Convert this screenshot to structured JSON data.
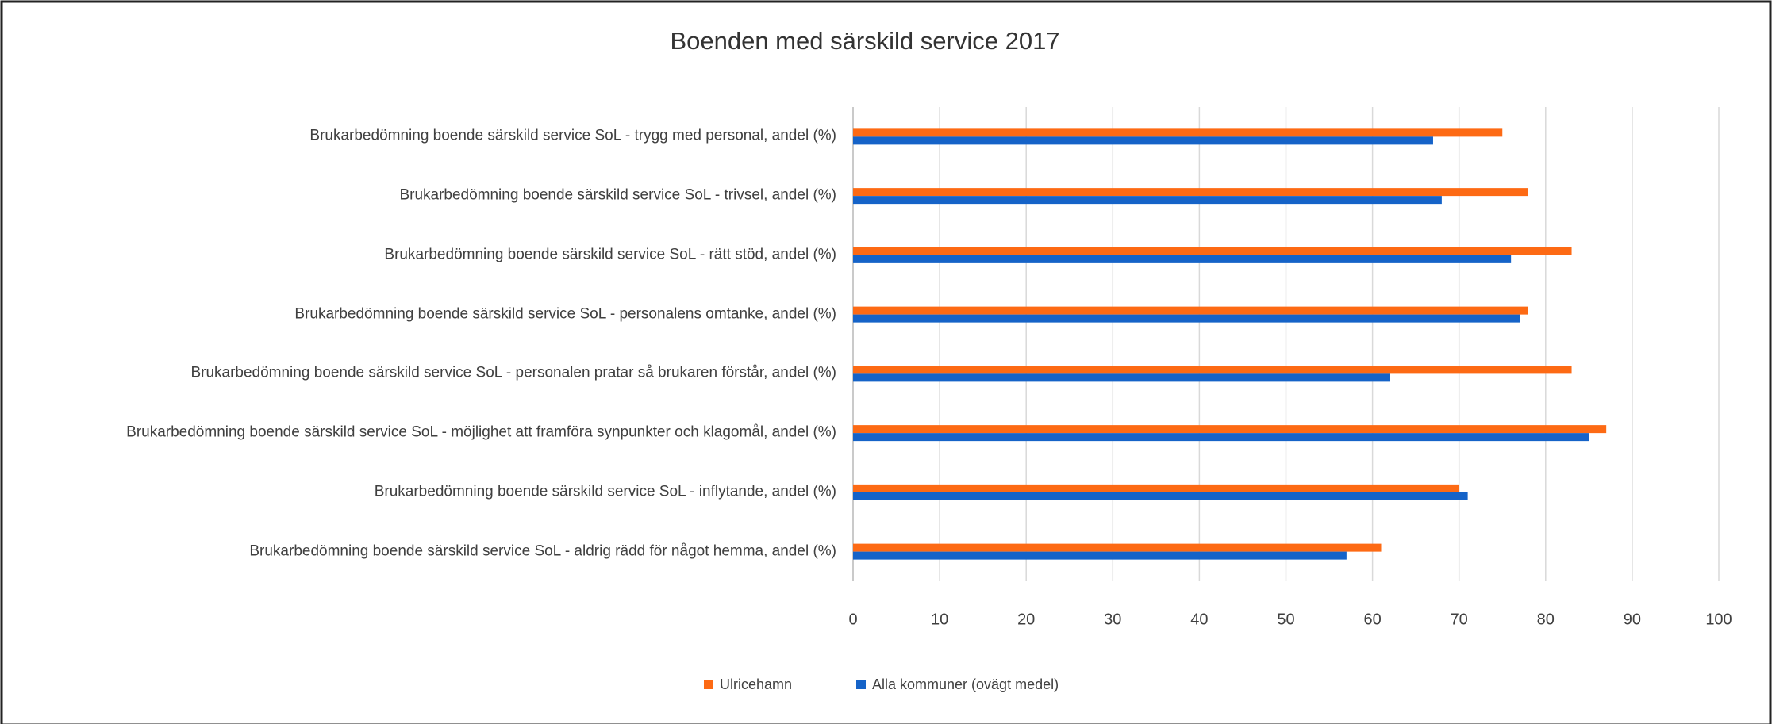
{
  "chart_data": {
    "type": "hbar",
    "title": "Boenden med särskild service 2017",
    "categories": [
      "Brukarbedömning boende särskild service SoL - trygg med personal, andel (%)",
      "Brukarbedömning boende särskild service SoL - trivsel, andel (%)",
      "Brukarbedömning boende särskild service SoL - rätt stöd, andel (%)",
      "Brukarbedömning boende särskild service SoL - personalens omtanke, andel (%)",
      "Brukarbedömning boende särskild service SoL - personalen pratar så brukaren förstår, andel (%)",
      "Brukarbedömning boende särskild service SoL - möjlighet att framföra synpunkter och klagomål, andel (%)",
      "Brukarbedömning boende särskild service SoL - inflytande, andel (%)",
      "Brukarbedömning boende särskild service SoL - aldrig rädd för något hemma, andel (%)"
    ],
    "series": [
      {
        "name": "Ulricehamn",
        "color": "#fd6a14",
        "values": [
          75,
          78,
          83,
          78,
          83,
          87,
          70,
          61
        ]
      },
      {
        "name": "Alla kommuner (ovägt medel)",
        "color": "#1563c8",
        "values": [
          67,
          68,
          76,
          77,
          62,
          85,
          71,
          57
        ]
      }
    ],
    "xlim": [
      0,
      100
    ],
    "xticks": [
      0,
      10,
      20,
      30,
      40,
      50,
      60,
      70,
      80,
      90,
      100
    ],
    "grid": true,
    "legend": "bottom"
  }
}
